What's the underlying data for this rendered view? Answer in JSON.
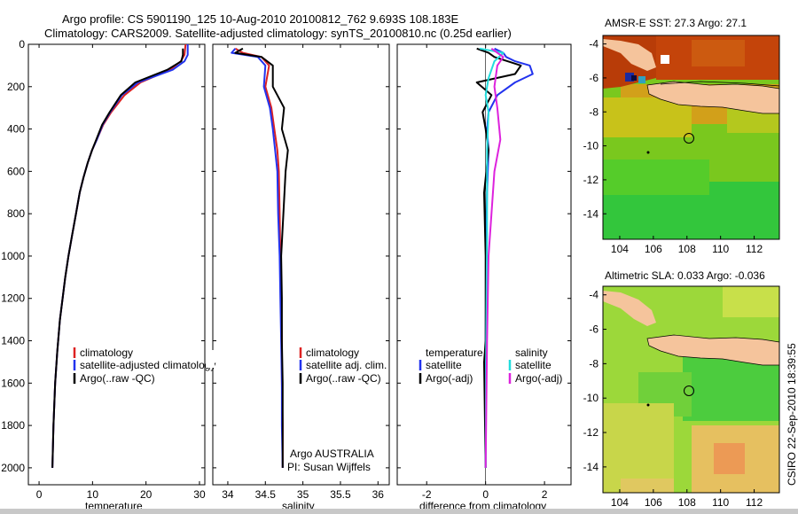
{
  "figure": {
    "title_line1": "Argo profile: CS 5901190_125 10-Aug-2010 20100812_762 9.693S 108.183E",
    "title_line2": "Climatology: CARS2009. Satellite-adjusted climatology: synTS_20100810.nc (0.25d earlier)",
    "credit": "CSIRO 22-Sep-2010 18:39:55"
  },
  "colors": {
    "climatology": "#dd2222",
    "satellite": "#2233ee",
    "argo": "#000000",
    "cyan": "#22dddd",
    "magenta": "#dd22dd"
  },
  "chart_data": [
    {
      "id": "temperature",
      "type": "line",
      "xlabel": "temperature",
      "ylabel": "",
      "xlim": [
        -2,
        31
      ],
      "ylim": [
        2080,
        0
      ],
      "xticks": [
        0,
        10,
        20,
        30
      ],
      "yticks": [
        0,
        200,
        400,
        600,
        800,
        1000,
        1200,
        1400,
        1600,
        1800,
        2000
      ],
      "legend": [
        "climatology",
        "satellite-adjusted climatology",
        "Argo(..raw -QC)"
      ],
      "series": [
        {
          "name": "climatology",
          "color": "#dd2222",
          "x": [
            27.4,
            27.2,
            26.5,
            24.5,
            19,
            16,
            13.5,
            12.0,
            10.8,
            9.9,
            9.1,
            8.3,
            7.6,
            6.9,
            6.2,
            5.5,
            4.9,
            4.4,
            3.9,
            3.4,
            3.0,
            2.7,
            2.5
          ],
          "y": [
            0,
            50,
            80,
            120,
            180,
            240,
            320,
            380,
            450,
            500,
            560,
            630,
            700,
            800,
            900,
            1000,
            1100,
            1200,
            1300,
            1450,
            1600,
            1800,
            2000
          ]
        },
        {
          "name": "satellite-adjusted climatology",
          "color": "#2233ee",
          "x": [
            27.8,
            27.8,
            27.2,
            25.0,
            18.5,
            15.5,
            13.3,
            11.9,
            10.8,
            9.9,
            9.1,
            8.3,
            7.6,
            6.9,
            6.2,
            5.5,
            4.9,
            4.4,
            3.9,
            3.4,
            3.0,
            2.7,
            2.5
          ],
          "y": [
            0,
            50,
            80,
            120,
            180,
            240,
            320,
            380,
            450,
            500,
            560,
            630,
            700,
            800,
            900,
            1000,
            1100,
            1200,
            1300,
            1450,
            1600,
            1800,
            2000
          ]
        },
        {
          "name": "Argo(..raw -QC)",
          "color": "#000000",
          "x": [
            26.9,
            26.9,
            26.6,
            24.0,
            18.0,
            15.3,
            13.2,
            11.8,
            10.7,
            9.9,
            9.1,
            8.3,
            7.6,
            6.9,
            6.2,
            5.5,
            4.9,
            4.4,
            3.9,
            3.4,
            3.0,
            2.7,
            2.5
          ],
          "y": [
            20,
            50,
            80,
            120,
            180,
            240,
            320,
            380,
            450,
            500,
            560,
            630,
            700,
            800,
            900,
            1000,
            1100,
            1200,
            1300,
            1450,
            1600,
            1800,
            2000
          ]
        }
      ]
    },
    {
      "id": "salinity",
      "type": "line",
      "xlabel": "salinity",
      "ylabel": "",
      "xlim": [
        33.8,
        36.15
      ],
      "ylim": [
        2080,
        0
      ],
      "xticks": [
        34,
        34.5,
        35,
        35.5,
        36
      ],
      "legend": [
        "climatology",
        "satellite adj. clim.",
        "Argo(..raw -QC)"
      ],
      "annotation_line1": "Argo AUSTRALIA",
      "annotation_line2": "PI: Susan Wijffels",
      "series": [
        {
          "name": "climatology",
          "color": "#dd2222",
          "x": [
            34.1,
            34.2,
            34.45,
            34.55,
            34.5,
            34.58,
            34.62,
            34.66,
            34.68,
            34.69,
            34.7,
            34.71,
            34.72,
            34.72,
            34.73,
            34.73
          ],
          "y": [
            20,
            40,
            60,
            100,
            200,
            300,
            400,
            500,
            600,
            800,
            1000,
            1200,
            1400,
            1600,
            1800,
            2000
          ]
        },
        {
          "name": "satellite adj. clim.",
          "color": "#2233ee",
          "x": [
            34.1,
            34.05,
            34.4,
            34.5,
            34.48,
            34.56,
            34.6,
            34.63,
            34.66,
            34.67,
            34.69,
            34.7,
            34.71,
            34.72,
            34.72,
            34.73
          ],
          "y": [
            20,
            40,
            60,
            100,
            200,
            300,
            400,
            500,
            600,
            800,
            1000,
            1200,
            1400,
            1600,
            1800,
            2000
          ]
        },
        {
          "name": "Argo(..raw -QC)",
          "color": "#000000",
          "x": [
            34.2,
            34.1,
            34.45,
            34.6,
            34.6,
            34.75,
            34.72,
            34.8,
            34.77,
            34.74,
            34.71,
            34.72,
            34.72,
            34.73,
            34.73,
            34.73
          ],
          "y": [
            20,
            40,
            60,
            100,
            200,
            300,
            400,
            500,
            600,
            800,
            1000,
            1200,
            1400,
            1600,
            1800,
            2000
          ]
        }
      ]
    },
    {
      "id": "difference",
      "type": "line",
      "xlabel": "difference from climatology",
      "ylabel": "",
      "xlim": [
        -3.0,
        2.9
      ],
      "ylim": [
        2080,
        0
      ],
      "xticks": [
        -2,
        0,
        2
      ],
      "legend_left_title": "temperature",
      "legend_right_title": "salinity",
      "legend_left": [
        "satellite",
        "Argo(-adj)"
      ],
      "legend_right": [
        "satellite",
        "Argo(-adj)"
      ],
      "series": [
        {
          "name": "temperature satellite",
          "color": "#2233ee",
          "x": [
            0.3,
            0.6,
            0.7,
            1.0,
            1.5,
            1.6,
            1.0,
            0.4,
            0.1,
            0.05,
            0.1,
            0.05,
            0.02,
            0.0,
            0.0
          ],
          "y": [
            20,
            40,
            60,
            80,
            100,
            140,
            180,
            240,
            320,
            400,
            500,
            700,
            1000,
            1500,
            2000
          ]
        },
        {
          "name": "temperature Argo(-adj)",
          "color": "#000000",
          "x": [
            -0.3,
            0.1,
            0.3,
            1.2,
            1.0,
            -0.3,
            0.2,
            -0.1,
            0.0,
            0.1,
            -0.05,
            0.0,
            0.0,
            -0.05,
            0.0
          ],
          "y": [
            20,
            40,
            60,
            100,
            140,
            180,
            240,
            320,
            400,
            500,
            700,
            1000,
            1400,
            1500,
            2000
          ]
        },
        {
          "name": "salinity satellite",
          "color": "#22dddd",
          "x": [
            -0.2,
            0.6,
            0.3,
            0.1,
            0.0,
            0.1,
            0.05,
            0.05,
            0.02,
            0.0
          ],
          "y": [
            20,
            40,
            80,
            160,
            240,
            320,
            500,
            900,
            1400,
            2000
          ]
        },
        {
          "name": "salinity Argo(-adj)",
          "color": "#dd22dd",
          "x": [
            0.2,
            0.6,
            0.4,
            0.3,
            0.4,
            0.5,
            0.3,
            0.2,
            0.1,
            0.05,
            0.0
          ],
          "y": [
            20,
            60,
            100,
            200,
            300,
            450,
            600,
            800,
            1000,
            1400,
            2000
          ]
        }
      ]
    },
    {
      "id": "sst_map",
      "type": "heatmap",
      "title": "AMSR-E SST: 27.3 Argo: 27.1",
      "xlim": [
        103,
        113.5
      ],
      "ylim": [
        -15.5,
        -3.5
      ],
      "xticks": [
        104,
        106,
        108,
        110,
        112
      ],
      "yticks": [
        -4,
        -6,
        -8,
        -10,
        -12,
        -14
      ],
      "argo_position": {
        "lon": 108.183,
        "lat": -9.693
      }
    },
    {
      "id": "sla_map",
      "type": "heatmap",
      "title": "Altimetric SLA: 0.033 Argo: -0.036",
      "xlim": [
        103,
        113.5
      ],
      "ylim": [
        -15.5,
        -3.5
      ],
      "xticks": [
        104,
        106,
        108,
        110,
        112
      ],
      "yticks": [
        -4,
        -6,
        -8,
        -10,
        -12,
        -14
      ],
      "argo_position": {
        "lon": 108.183,
        "lat": -9.693
      }
    }
  ]
}
